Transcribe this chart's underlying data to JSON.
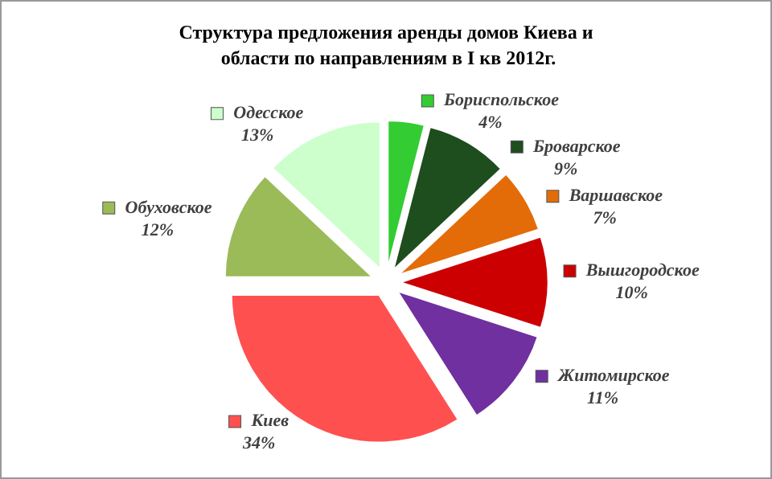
{
  "chart_data": {
    "type": "pie",
    "title": "Структура предложения аренды домов Киева и области по направлениям в I кв 2012г.",
    "categories": [
      "Бориспольское",
      "Броварское",
      "Варшавское",
      "Вышгородское",
      "Житомирское",
      "Киев",
      "Обуховское",
      "Одесское"
    ],
    "values": [
      4,
      9,
      7,
      10,
      11,
      34,
      12,
      13
    ],
    "value_labels": [
      "4%",
      "9%",
      "7%",
      "10%",
      "11%",
      "34%",
      "12%",
      "13%"
    ],
    "colors": [
      "#33cc33",
      "#1e4d1e",
      "#e36c09",
      "#cc0000",
      "#7030a0",
      "#ff5050",
      "#9bbb59",
      "#ccffcc"
    ],
    "legend": "right"
  }
}
